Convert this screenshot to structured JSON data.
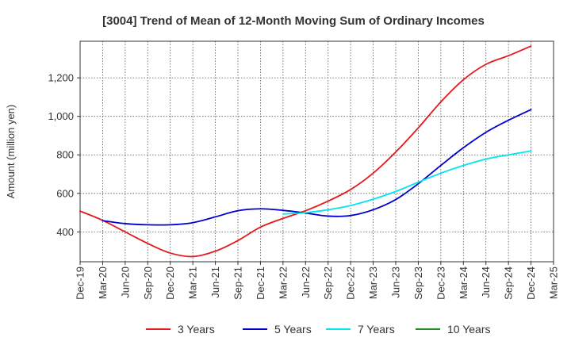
{
  "chart_data": {
    "type": "line",
    "title": "[3004]  Trend of Mean of 12-Month Moving Sum of Ordinary Incomes",
    "xlabel": "",
    "ylabel": "Amount (million yen)",
    "ylim": [
      245,
      1390
    ],
    "y_ticks": [
      400,
      600,
      800,
      1000,
      1200
    ],
    "y_tick_labels": [
      "400",
      "600",
      "800",
      "1,000",
      "1,200"
    ],
    "x_tick_labels": [
      "Dec-19",
      "Mar-20",
      "Jun-20",
      "Sep-20",
      "Dec-20",
      "Mar-21",
      "Jun-21",
      "Sep-21",
      "Dec-21",
      "Mar-22",
      "Jun-22",
      "Sep-22",
      "Dec-22",
      "Mar-23",
      "Jun-23",
      "Sep-23",
      "Dec-23",
      "Mar-24",
      "Jun-24",
      "Sep-24",
      "Dec-24",
      "Mar-25"
    ],
    "grid": true,
    "legend_position": "bottom",
    "series": [
      {
        "name": "3 Years",
        "color": "#e41a1c",
        "values": [
          508,
          460,
          400,
          340,
          290,
          272,
          300,
          355,
          425,
          470,
          510,
          560,
          620,
          705,
          815,
          940,
          1075,
          1190,
          1270,
          1315,
          1365,
          null
        ]
      },
      {
        "name": "5 Years",
        "color": "#0000cc",
        "values": [
          null,
          458,
          443,
          437,
          437,
          448,
          478,
          510,
          520,
          512,
          498,
          482,
          485,
          515,
          568,
          650,
          745,
          837,
          917,
          980,
          1035,
          null
        ]
      },
      {
        "name": "7 Years",
        "color": "#00e5ee",
        "values": [
          null,
          null,
          null,
          null,
          null,
          null,
          null,
          null,
          null,
          493,
          500,
          515,
          537,
          570,
          610,
          658,
          705,
          745,
          778,
          800,
          820,
          null
        ]
      },
      {
        "name": "10 Years",
        "color": "#228b22",
        "values": [
          null,
          null,
          null,
          null,
          null,
          null,
          null,
          null,
          null,
          null,
          null,
          null,
          null,
          null,
          null,
          null,
          null,
          null,
          null,
          null,
          null,
          null
        ]
      }
    ]
  }
}
